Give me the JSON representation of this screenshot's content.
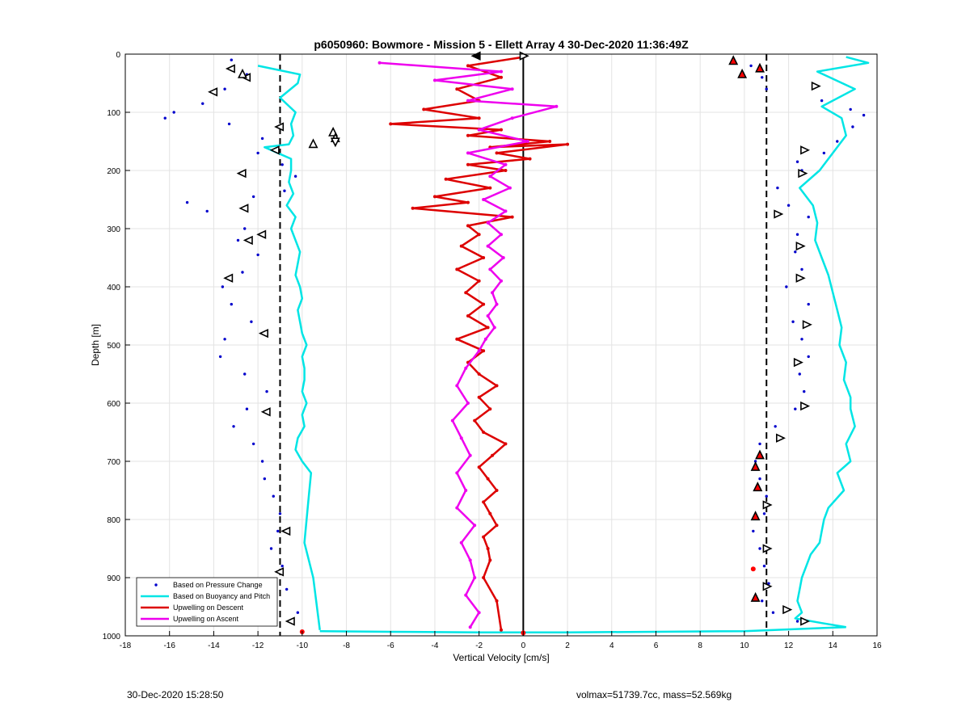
{
  "chart_data": {
    "type": "line",
    "title": "p6050960: Bowmore - Mission 5 - Ellett Array 4 30-Dec-2020 11:36:49Z",
    "xlabel": "Vertical Velocity [cm/s]",
    "ylabel": "Depth [m]",
    "xlim": [
      -18,
      16
    ],
    "ylim": [
      0,
      1000
    ],
    "y_reversed": true,
    "grid": true,
    "xticks": [
      -18,
      -16,
      -14,
      -12,
      -10,
      -8,
      -6,
      -4,
      -2,
      0,
      2,
      4,
      6,
      8,
      10,
      12,
      14,
      16
    ],
    "yticks": [
      0,
      100,
      200,
      300,
      400,
      500,
      600,
      700,
      800,
      900,
      1000
    ],
    "legend_position": "bottom-left",
    "reference_lines": [
      {
        "x": -11,
        "style": "dashed"
      },
      {
        "x": 11,
        "style": "dashed"
      },
      {
        "x": 0,
        "style": "solid"
      }
    ],
    "series": [
      {
        "name": "Based on Pressure Change",
        "type": "scatter",
        "color": "#0000cc",
        "segments": [
          {
            "side": "descent",
            "x": [
              -13.2,
              -12.5,
              -13.5,
              -14.5,
              -15.8,
              -16.2,
              -13.3,
              -11.8,
              -12.0,
              -10.9,
              -10.3,
              -10.8,
              -12.2,
              -15.2,
              -14.3,
              -12.6,
              -12.9,
              -12.0,
              -12.7,
              -13.6,
              -13.2,
              -12.3,
              -13.5,
              -13.7,
              -12.6,
              -11.6,
              -12.5,
              -13.1,
              -12.2,
              -11.8,
              -11.7,
              -11.3,
              -11.0,
              -11.1,
              -11.4,
              -10.9,
              -10.7,
              -10.2
            ],
            "y": [
              10,
              35,
              60,
              85,
              100,
              110,
              120,
              145,
              170,
              190,
              210,
              235,
              245,
              255,
              270,
              300,
              320,
              345,
              375,
              400,
              430,
              460,
              490,
              520,
              550,
              580,
              610,
              640,
              670,
              700,
              730,
              760,
              790,
              820,
              850,
              880,
              920,
              960
            ]
          },
          {
            "side": "ascent",
            "x": [
              10.3,
              10.8,
              11.0,
              13.5,
              14.8,
              15.4,
              14.9,
              14.2,
              13.6,
              12.4,
              12.6,
              11.5,
              12.0,
              12.9,
              12.4,
              12.3,
              12.6,
              11.9,
              12.9,
              12.2,
              12.6,
              12.9,
              12.5,
              12.7,
              12.3,
              11.4,
              10.7,
              10.5,
              10.7,
              11.0,
              10.9,
              10.4,
              10.7,
              10.9,
              11.1,
              10.8,
              11.3,
              12.4
            ],
            "y": [
              20,
              40,
              60,
              80,
              95,
              105,
              125,
              150,
              170,
              185,
              200,
              230,
              260,
              280,
              310,
              340,
              370,
              400,
              430,
              460,
              490,
              520,
              550,
              580,
              610,
              640,
              670,
              700,
              730,
              760,
              790,
              820,
              850,
              880,
              910,
              940,
              960,
              975
            ]
          }
        ]
      },
      {
        "name": "Based on Buoyancy and Pitch",
        "type": "line",
        "color": "#00e5e5",
        "segments": [
          {
            "side": "descent",
            "x": [
              -12.0,
              -10.1,
              -10.2,
              -11.0,
              -10.3,
              -10.5,
              -10.4,
              -10.6,
              -11.7,
              -10.5,
              -10.5,
              -10.6,
              -10.4,
              -10.7,
              -10.3,
              -10.5,
              -10.3,
              -10.1,
              -10.2,
              -10.3,
              -10.1,
              -10.0,
              -10.2,
              -10.1,
              -10.0,
              -9.8,
              -10.0,
              -9.9,
              -9.9,
              -10.0,
              -9.8,
              -10.0,
              -9.9,
              -10.2,
              -10.3,
              -10.0,
              -9.6,
              -9.7,
              -9.8,
              -9.9,
              -9.5,
              -9.2
            ],
            "y": [
              20,
              35,
              50,
              75,
              100,
              120,
              140,
              155,
              160,
              180,
              200,
              220,
              240,
              260,
              280,
              300,
              320,
              340,
              360,
              380,
              400,
              420,
              440,
              460,
              480,
              500,
              520,
              540,
              560,
              580,
              600,
              620,
              640,
              660,
              680,
              700,
              720,
              760,
              800,
              840,
              900,
              990
            ]
          },
          {
            "side": "ascent",
            "x": [
              14.6,
              15.6,
              13.3,
              15.0,
              13.5,
              14.4,
              14.6,
              14.0,
              13.4,
              12.5,
              13.1,
              13.3,
              13.2,
              13.5,
              13.8,
              14.0,
              14.2,
              14.4,
              14.3,
              14.6,
              14.5,
              14.8,
              14.8,
              15.0,
              14.6,
              14.8,
              14.2,
              14.5,
              13.8,
              13.6,
              13.5,
              13.4,
              13.0,
              12.8,
              12.6,
              12.5,
              12.4,
              12.6,
              12.3,
              13.5,
              14.6
            ],
            "y": [
              5,
              15,
              30,
              60,
              90,
              110,
              140,
              170,
              200,
              230,
              260,
              290,
              320,
              350,
              380,
              410,
              440,
              470,
              500,
              530,
              560,
              590,
              610,
              640,
              670,
              700,
              720,
              750,
              780,
              800,
              820,
              840,
              860,
              880,
              900,
              920,
              940,
              960,
              970,
              978,
              985
            ]
          },
          {
            "side": "bottom",
            "x": [
              -9.2,
              -6.0,
              -2.0,
              2.0,
              6.0,
              10.0,
              14.6
            ],
            "y": [
              992,
              993,
              994,
              994,
              993,
              992,
              985
            ]
          }
        ]
      },
      {
        "name": "Upwelling on Descent",
        "type": "line",
        "color": "#dd0000",
        "x": [
          0.0,
          -2.5,
          -1.0,
          -3.0,
          -2.0,
          -4.5,
          -2.0,
          -6.0,
          -1.0,
          -2.5,
          1.2,
          -1.5,
          2.0,
          -1.2,
          0.3,
          -2.5,
          -0.8,
          -3.5,
          -1.5,
          -4.0,
          -2.5,
          -5.0,
          -0.5,
          -2.5,
          -2.0,
          -2.8,
          -1.8,
          -3.0,
          -2.0,
          -2.6,
          -1.8,
          -2.5,
          -1.6,
          -3.0,
          -1.8,
          -2.5,
          -2.0,
          -1.2,
          -2.0,
          -1.5,
          -2.2,
          -1.8,
          -0.8,
          -1.4,
          -2.0,
          -1.6,
          -1.2,
          -1.8,
          -1.5,
          -1.2,
          -1.8,
          -1.6,
          -1.5,
          -1.8,
          -1.2,
          -1.0
        ],
        "y": [
          5,
          20,
          40,
          60,
          80,
          95,
          110,
          120,
          130,
          140,
          150,
          160,
          155,
          170,
          180,
          190,
          200,
          215,
          230,
          245,
          255,
          265,
          280,
          295,
          310,
          330,
          350,
          370,
          390,
          410,
          430,
          450,
          470,
          490,
          510,
          530,
          550,
          570,
          590,
          610,
          630,
          650,
          670,
          690,
          710,
          730,
          750,
          770,
          790,
          810,
          830,
          850,
          870,
          900,
          940,
          990
        ]
      },
      {
        "name": "Upwelling on Ascent",
        "type": "line",
        "color": "#ee00ee",
        "x": [
          -6.5,
          -1.0,
          -4.0,
          -0.5,
          -2.5,
          1.5,
          -0.5,
          -2.0,
          0.2,
          -2.5,
          -0.8,
          -1.5,
          -0.6,
          -1.8,
          -0.8,
          -1.6,
          -1.0,
          -1.6,
          -0.9,
          -1.5,
          -1.0,
          -1.4,
          -1.2,
          -1.6,
          -1.3,
          -1.7,
          -2.0,
          -2.6,
          -3.0,
          -2.5,
          -3.2,
          -2.8,
          -2.4,
          -3.0,
          -2.6,
          -3.0,
          -2.2,
          -2.8,
          -2.4,
          -2.2,
          -2.6,
          -2.0,
          -2.4
        ],
        "y": [
          15,
          30,
          45,
          60,
          80,
          90,
          110,
          130,
          150,
          170,
          190,
          210,
          230,
          250,
          270,
          290,
          310,
          330,
          350,
          370,
          390,
          410,
          430,
          450,
          470,
          490,
          510,
          540,
          570,
          600,
          630,
          660,
          690,
          720,
          750,
          780,
          810,
          840,
          870,
          900,
          930,
          960,
          985
        ]
      }
    ],
    "markers": [
      {
        "shape": "triangle-left",
        "fill": "white",
        "x": [
          -13.2,
          -12.5,
          -14.0,
          -11.0,
          -11.2,
          -12.7,
          -12.6,
          -11.8,
          -12.4,
          -13.3,
          -11.7,
          -11.6,
          -10.7,
          -11.0,
          -10.5
        ],
        "y": [
          25,
          40,
          65,
          125,
          165,
          205,
          265,
          310,
          320,
          385,
          480,
          615,
          820,
          890,
          975
        ]
      },
      {
        "shape": "triangle-right",
        "fill": "white",
        "x": [
          13.2,
          12.7,
          12.6,
          11.5,
          12.5,
          12.5,
          12.8,
          12.4,
          12.7,
          11.6,
          11.0,
          11.0,
          11.0,
          11.9,
          12.7
        ],
        "y": [
          55,
          165,
          205,
          275,
          330,
          385,
          465,
          530,
          605,
          660,
          775,
          850,
          915,
          955,
          975
        ]
      },
      {
        "shape": "triangle-up",
        "fill": "white",
        "x": [
          -12.7,
          -9.5,
          -8.6,
          -8.5
        ],
        "y": [
          35,
          155,
          135,
          145
        ]
      },
      {
        "shape": "triangle-up",
        "fill": "red",
        "x": [
          9.5,
          9.9,
          10.7,
          10.7,
          10.5,
          10.6,
          10.5,
          10.5
        ],
        "y": [
          12,
          35,
          25,
          690,
          710,
          745,
          795,
          935
        ]
      },
      {
        "shape": "triangle-down",
        "fill": "white",
        "x": [
          -8.5
        ],
        "y": [
          150
        ]
      },
      {
        "shape": "triangle-left",
        "fill": "black",
        "x": [
          -2.1
        ],
        "y": [
          3
        ]
      },
      {
        "shape": "triangle-right",
        "fill": "white",
        "x": [
          0.0
        ],
        "y": [
          3
        ]
      },
      {
        "shape": "circle",
        "fill": "red",
        "x": [
          -10.0,
          0.0,
          10.4
        ],
        "y": [
          993,
          995,
          885
        ]
      }
    ]
  },
  "footer": {
    "timestamp": "30-Dec-2020 15:28:50",
    "summary": "volmax=51739.7cc, mass=52.569kg"
  }
}
